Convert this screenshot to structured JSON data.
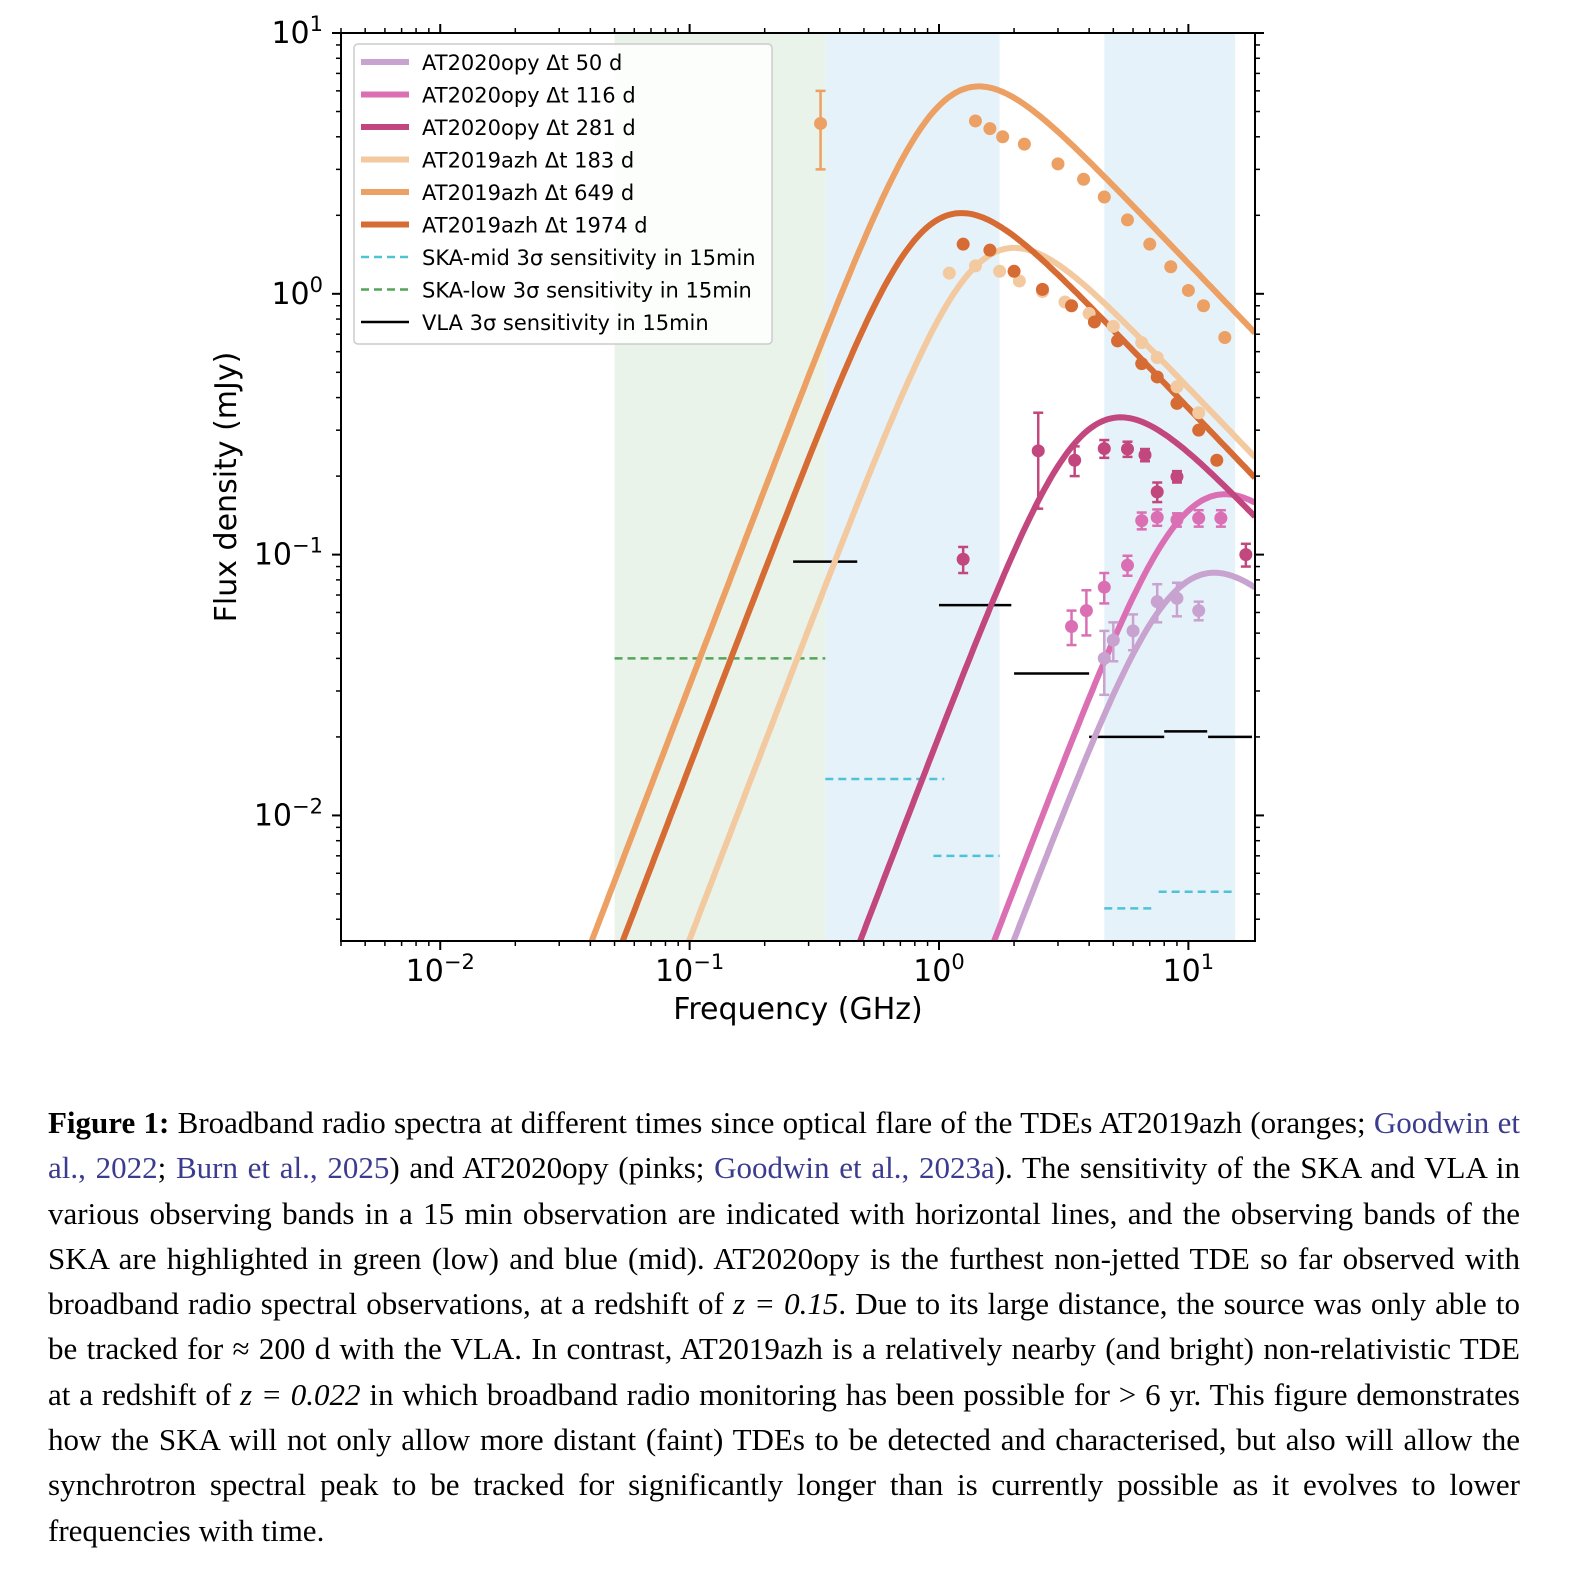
{
  "chart_data": {
    "type": "line",
    "xlabel": "Frequency (GHz)",
    "ylabel": "Flux density (mJy)",
    "xscale": "log",
    "yscale": "log",
    "xlim": [
      0.004,
      18.5
    ],
    "ylim": [
      0.0033,
      10
    ],
    "xticks": [
      {
        "value": 0.01,
        "base": "10",
        "exp": "−2"
      },
      {
        "value": 0.1,
        "base": "10",
        "exp": "−1"
      },
      {
        "value": 1,
        "base": "10",
        "exp": "0"
      },
      {
        "value": 10,
        "base": "10",
        "exp": "1"
      }
    ],
    "yticks": [
      {
        "value": 0.01,
        "base": "10",
        "exp": "−2"
      },
      {
        "value": 0.1,
        "base": "10",
        "exp": "−1"
      },
      {
        "value": 1,
        "base": "10",
        "exp": "0"
      },
      {
        "value": 10,
        "base": "10",
        "exp": "1"
      }
    ],
    "bands": [
      {
        "name": "SKA-low",
        "range": [
          0.05,
          0.35
        ],
        "color": "#e9f3ea"
      },
      {
        "name": "SKA-mid",
        "range": [
          0.35,
          1.75
        ],
        "color": "#e6f2fa"
      },
      {
        "name": "SKA-mid",
        "range": [
          4.6,
          15.4
        ],
        "color": "#e6f2fa"
      }
    ],
    "series": [
      {
        "name": "AT2020opy Δt 50 d",
        "color": "#c9a3cf",
        "peak_freq": 9.5,
        "peak_flux": 0.071,
        "points": [
          [
            4.6,
            0.04,
            0.011
          ],
          [
            5.0,
            0.047,
            0.008
          ],
          [
            6.0,
            0.051,
            0.008
          ],
          [
            7.5,
            0.066,
            0.011
          ],
          [
            9.0,
            0.068,
            0.01
          ],
          [
            11.0,
            0.061,
            0.005
          ]
        ]
      },
      {
        "name": "AT2020opy Δt 116 d",
        "color": "#db6fb4",
        "peak_freq": 10.5,
        "peak_flux": 0.142,
        "points": [
          [
            3.4,
            0.053,
            0.008
          ],
          [
            3.9,
            0.061,
            0.012
          ],
          [
            4.6,
            0.075,
            0.01
          ],
          [
            5.7,
            0.091,
            0.008
          ],
          [
            6.5,
            0.135,
            0.01
          ],
          [
            7.5,
            0.139,
            0.01
          ],
          [
            9.0,
            0.136,
            0.008
          ],
          [
            11.0,
            0.138,
            0.01
          ],
          [
            13.5,
            0.138,
            0.01
          ]
        ]
      },
      {
        "name": "AT2020opy Δt 281 d",
        "color": "#c2477e",
        "peak_freq": 4.0,
        "peak_flux": 0.28,
        "points": [
          [
            1.25,
            0.096,
            0.011
          ],
          [
            2.5,
            0.25,
            0.1
          ],
          [
            3.5,
            0.23,
            0.03
          ],
          [
            4.6,
            0.255,
            0.02
          ],
          [
            5.7,
            0.254,
            0.017
          ],
          [
            6.7,
            0.241,
            0.013
          ],
          [
            7.5,
            0.174,
            0.015
          ],
          [
            9.0,
            0.199,
            0.01
          ],
          [
            17.0,
            0.1,
            0.01
          ]
        ]
      },
      {
        "name": "AT2019azh Δt 183 d",
        "color": "#f3c9a0",
        "peak_freq": 1.5,
        "peak_flux": 1.25,
        "points": [
          [
            1.1,
            1.2,
            0.0
          ],
          [
            1.4,
            1.28,
            0.0
          ],
          [
            1.75,
            1.22,
            0.0
          ],
          [
            2.1,
            1.12,
            0.0
          ],
          [
            2.6,
            1.02,
            0.0
          ],
          [
            3.2,
            0.93,
            0.0
          ],
          [
            4.0,
            0.84,
            0.0
          ],
          [
            5.0,
            0.75,
            0.0
          ],
          [
            6.5,
            0.65,
            0.0
          ],
          [
            7.5,
            0.57,
            0.0
          ],
          [
            9.0,
            0.44,
            0.0
          ],
          [
            11.0,
            0.35,
            0.0
          ]
        ]
      },
      {
        "name": "AT2019azh Δt 649 d",
        "color": "#eca063",
        "peak_freq": 1.08,
        "peak_flux": 5.2,
        "points": [
          [
            0.335,
            4.5,
            1.5
          ],
          [
            1.4,
            4.6,
            0.0
          ],
          [
            1.6,
            4.3,
            0.0
          ],
          [
            1.8,
            4.0,
            0.0
          ],
          [
            2.2,
            3.75,
            0.0
          ],
          [
            3.0,
            3.15,
            0.0
          ],
          [
            3.8,
            2.75,
            0.0
          ],
          [
            4.6,
            2.35,
            0.0
          ],
          [
            5.7,
            1.92,
            0.0
          ],
          [
            7.0,
            1.55,
            0.0
          ],
          [
            8.5,
            1.27,
            0.0
          ],
          [
            10.0,
            1.03,
            0.0
          ],
          [
            11.5,
            0.9,
            0.0
          ],
          [
            14.0,
            0.68,
            0.0
          ]
        ]
      },
      {
        "name": "AT2019azh Δt 1974 d",
        "color": "#d66b34",
        "peak_freq": 0.92,
        "peak_flux": 1.7,
        "points": [
          [
            1.25,
            1.55,
            0.0
          ],
          [
            1.6,
            1.47,
            0.0
          ],
          [
            2.0,
            1.22,
            0.0
          ],
          [
            2.6,
            1.04,
            0.0
          ],
          [
            3.4,
            0.9,
            0.0
          ],
          [
            4.2,
            0.78,
            0.0
          ],
          [
            5.2,
            0.66,
            0.0
          ],
          [
            6.5,
            0.54,
            0.0
          ],
          [
            7.5,
            0.48,
            0.0
          ],
          [
            9.0,
            0.38,
            0.0
          ],
          [
            11.0,
            0.3,
            0.0
          ],
          [
            13.0,
            0.23,
            0.0
          ]
        ]
      }
    ],
    "sensitivity": [
      {
        "name": "SKA-mid 3σ sensitivity in 15min",
        "color": "#4dc3d6",
        "dash": true,
        "segments": [
          [
            0.35,
            1.05,
            0.0138
          ],
          [
            0.95,
            1.75,
            0.007
          ],
          [
            4.6,
            7.1,
            0.0044
          ],
          [
            7.6,
            15.4,
            0.0051
          ]
        ]
      },
      {
        "name": "SKA-low 3σ sensitivity in 15min",
        "color": "#54a45a",
        "dash": true,
        "segments": [
          [
            0.05,
            0.35,
            0.04
          ]
        ]
      },
      {
        "name": "VLA 3σ sensitivity in 15min",
        "color": "#000000",
        "dash": false,
        "segments": [
          [
            0.26,
            0.47,
            0.094
          ],
          [
            1.0,
            1.95,
            0.064
          ],
          [
            2.0,
            4.0,
            0.035
          ],
          [
            4.0,
            8.0,
            0.02
          ],
          [
            8.0,
            11.9,
            0.021
          ],
          [
            12.0,
            18.0,
            0.02
          ]
        ]
      }
    ],
    "legend_placement": "upper-left"
  },
  "caption": {
    "label": "Figure 1:",
    "parts": [
      " Broadband radio spectra at different times since optical flare of the TDEs AT2019azh (oranges; ",
      "Goodwin et al., 2022",
      "; ",
      "Burn et al., 2025",
      ") and AT2020opy (pinks; ",
      "Goodwin et al., 2023a",
      "). The sensitivity of the SKA and VLA in various observing bands in a 15 min observation are indicated with horizontal lines, and the observing bands of the SKA are highlighted in green (low) and blue (mid). AT2020opy is the furthest non-jetted TDE so far observed with broadband radio spectral observations, at a redshift of ",
      "z = 0.15",
      ". Due to its large distance, the source was only able to be tracked for ≈ 200 d with the VLA. In contrast, AT2019azh is a relatively nearby (and bright) non-relativistic TDE at a redshift of ",
      "z = 0.022",
      " in which broadband radio monitoring has been possible for > 6 yr. This figure demonstrates how the SKA will not only allow more distant (faint) TDEs to be detected and characterised, but also will allow the synchrotron spectral peak to be tracked for significantly longer than is currently possible as it evolves to lower frequencies with time."
    ]
  }
}
